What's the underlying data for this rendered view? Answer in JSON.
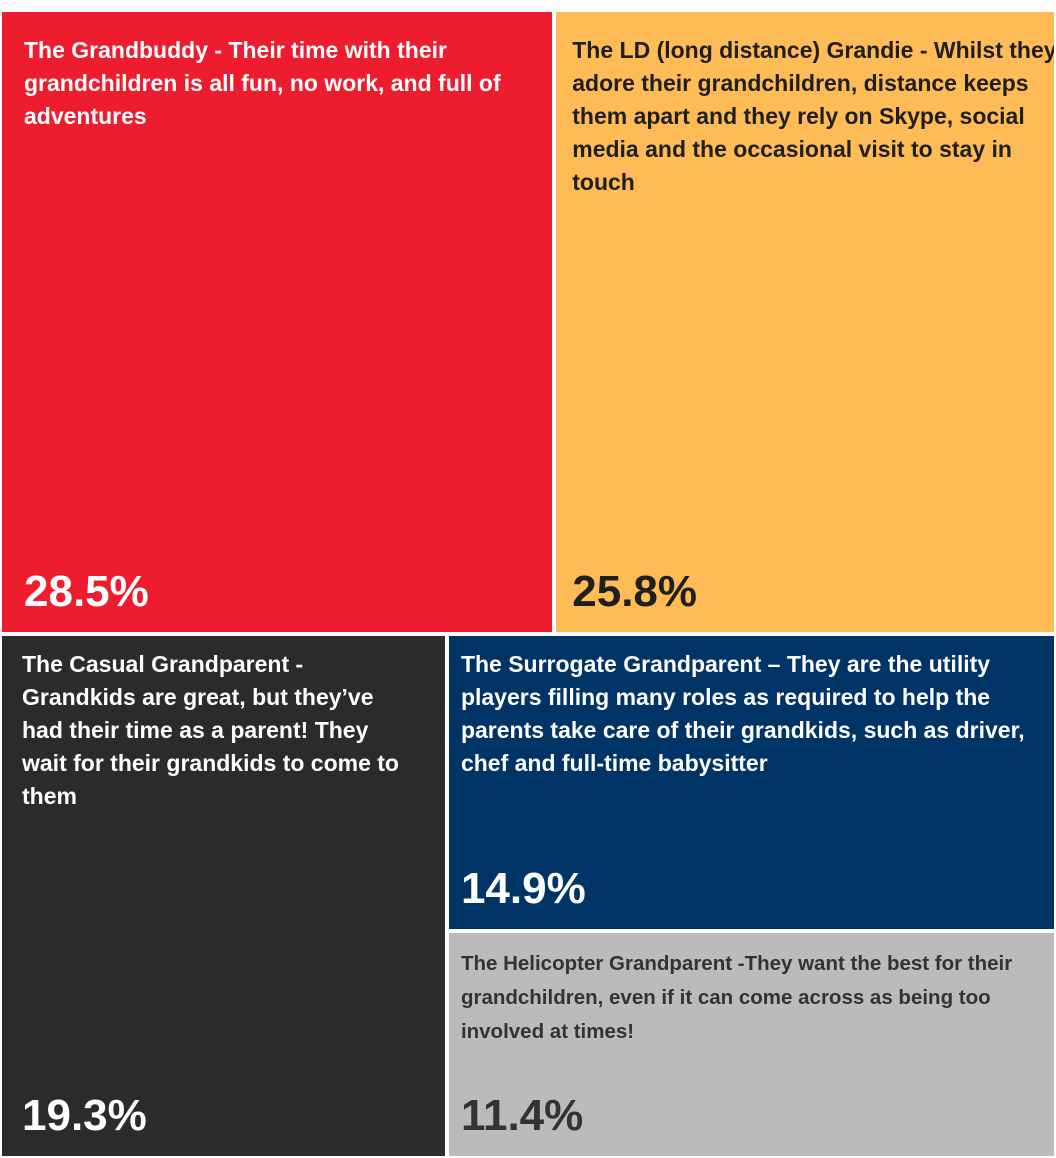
{
  "chart_data": {
    "type": "treemap",
    "items": [
      {
        "label": "The Grandbuddy - Their time with their grandchildren is all fun, no work, and full of adventures",
        "value_label": "28.5%",
        "value": 28.5,
        "color": "#ED1C2E",
        "text_color": "#FFFFFF"
      },
      {
        "label": "The LD (long distance) Grandie - Whilst they adore their grandchildren, distance keeps them apart and they rely on Skype, social media and the occasional visit to stay in touch",
        "value_label": "25.8%",
        "value": 25.8,
        "color": "#FFBB55",
        "text_color": "#1F1F1F"
      },
      {
        "label": "The Casual Grandparent - Grandkids are great, but they’ve had their time as a parent! They wait for their grandkids to come to them",
        "value_label": "19.3%",
        "value": 19.3,
        "color": "#2B2B2B",
        "text_color": "#FFFFFF"
      },
      {
        "label": "The Surrogate Grandparent – They are the utility players filling many roles as required to help the parents take care of their grandkids, such as driver, chef and full-time babysitter",
        "value_label": "14.9%",
        "value": 14.9,
        "color": "#003366",
        "text_color": "#FFFFFF"
      },
      {
        "label": "The Helicopter Grandparent -They want the best for their grandchildren, even if it can come across as being too involved at times!",
        "value_label": "11.4%",
        "value": 11.4,
        "color": "#BBBBBB",
        "text_color": "#333333"
      }
    ]
  }
}
